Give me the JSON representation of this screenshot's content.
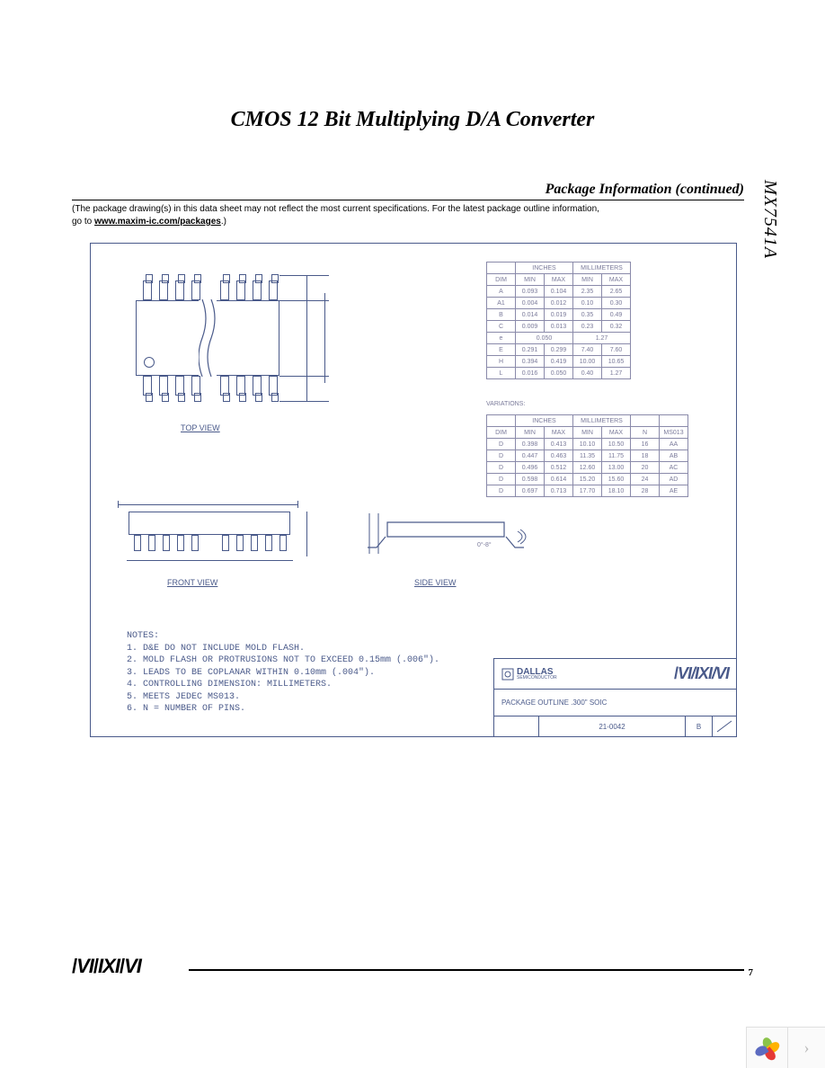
{
  "title": "CMOS 12 Bit Multiplying D/A Converter",
  "section_header": "Package Information (continued)",
  "disclaimer_line1": "(The package drawing(s) in this data sheet may not reflect the most current specifications. For the latest package outline information,",
  "disclaimer_line2_prefix": "go to ",
  "disclaimer_link": "www.maxim-ic.com/packages",
  "disclaimer_line2_suffix": ".)",
  "part_number": "MX7541A",
  "view_labels": {
    "top": "TOP VIEW",
    "front": "FRONT VIEW",
    "side": "SIDE VIEW"
  },
  "table1": {
    "unit_headers": [
      "INCHES",
      "MILLIMETERS"
    ],
    "col_headers": [
      "DIM",
      "MIN",
      "MAX",
      "MIN",
      "MAX"
    ],
    "rows": [
      [
        "A",
        "0.093",
        "0.104",
        "2.35",
        "2.65"
      ],
      [
        "A1",
        "0.004",
        "0.012",
        "0.10",
        "0.30"
      ],
      [
        "B",
        "0.014",
        "0.019",
        "0.35",
        "0.49"
      ],
      [
        "C",
        "0.009",
        "0.013",
        "0.23",
        "0.32"
      ],
      [
        "e",
        "0.050",
        "",
        "1.27",
        ""
      ],
      [
        "E",
        "0.291",
        "0.299",
        "7.40",
        "7.60"
      ],
      [
        "H",
        "0.394",
        "0.419",
        "10.00",
        "10.65"
      ],
      [
        "L",
        "0.016",
        "0.050",
        "0.40",
        "1.27"
      ]
    ]
  },
  "variations_label": "VARIATIONS:",
  "table2": {
    "unit_headers": [
      "INCHES",
      "MILLIMETERS"
    ],
    "col_headers": [
      "DIM",
      "MIN",
      "MAX",
      "MIN",
      "MAX",
      "N",
      "MS013"
    ],
    "rows": [
      [
        "D",
        "0.398",
        "0.413",
        "10.10",
        "10.50",
        "16",
        "AA"
      ],
      [
        "D",
        "0.447",
        "0.463",
        "11.35",
        "11.75",
        "18",
        "AB"
      ],
      [
        "D",
        "0.496",
        "0.512",
        "12.60",
        "13.00",
        "20",
        "AC"
      ],
      [
        "D",
        "0.598",
        "0.614",
        "15.20",
        "15.60",
        "24",
        "AD"
      ],
      [
        "D",
        "0.697",
        "0.713",
        "17.70",
        "18.10",
        "28",
        "AE"
      ]
    ]
  },
  "notes": {
    "header": "NOTES:",
    "items": [
      "1. D&E DO NOT INCLUDE MOLD FLASH.",
      "2. MOLD FLASH OR PROTRUSIONS NOT TO EXCEED 0.15mm (.006\").",
      "3. LEADS TO BE COPLANAR WITHIN 0.10mm (.004\").",
      "4. CONTROLLING DIMENSION: MILLIMETERS.",
      "5. MEETS JEDEC MS013.",
      "6. N = NUMBER OF PINS."
    ]
  },
  "title_block": {
    "dallas": "DALLAS",
    "dallas_sub": "SEMICONDUCTOR",
    "maxim": "MAXIM",
    "desc": "PACKAGE OUTLINE .300\" SOIC",
    "doc_num": "21-0042",
    "rev": "B"
  },
  "footer": {
    "logo": "MAXIM",
    "page": "7"
  },
  "colors": {
    "drawing": "#4a5a8a",
    "table_border": "#8a8aaa",
    "table_text": "#7a7a9a"
  }
}
